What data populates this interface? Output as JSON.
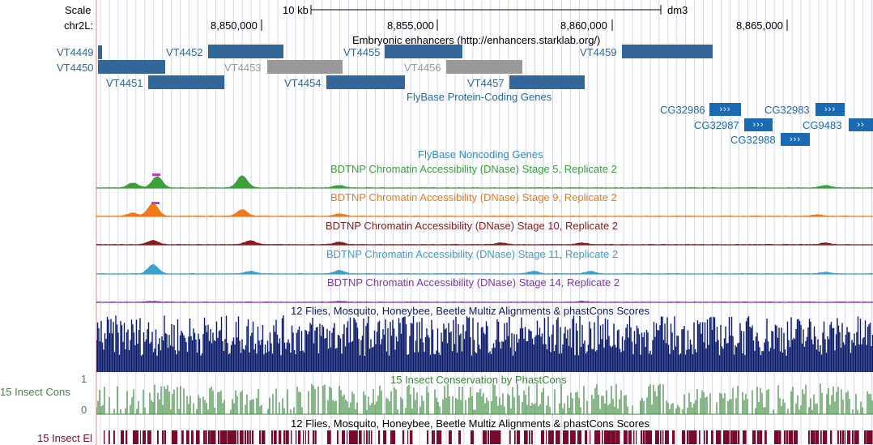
{
  "ruler": {
    "scale_label": "Scale",
    "scale_bar_label": "10 kb",
    "assembly": "dm3",
    "chrom_label": "chr2L:",
    "ticks": [
      "8,850,000",
      "8,855,000",
      "8,860,000",
      "8,865,000"
    ]
  },
  "tracks": {
    "enhancers": {
      "title": "Embryonic enhancers (http://enhancers.starklab.org/)",
      "color": "#336699",
      "gray": "#999999",
      "features": [
        {
          "name": "VT4449",
          "style": "blue"
        },
        {
          "name": "VT4450",
          "style": "blue"
        },
        {
          "name": "VT4451",
          "style": "blue"
        },
        {
          "name": "VT4452",
          "style": "blue"
        },
        {
          "name": "VT4453",
          "style": "gray"
        },
        {
          "name": "VT4454",
          "style": "blue"
        },
        {
          "name": "VT4455",
          "style": "blue"
        },
        {
          "name": "VT4456",
          "style": "gray"
        },
        {
          "name": "VT4457",
          "style": "blue"
        },
        {
          "name": "VT4459",
          "style": "blue"
        }
      ]
    },
    "coding_genes": {
      "title": "FlyBase Protein-Coding Genes",
      "color": "#1a6ab3",
      "genes": [
        {
          "name": "CG32986",
          "arrows": "›››"
        },
        {
          "name": "CG32983",
          "arrows": "›››"
        },
        {
          "name": "CG32987",
          "arrows": "›››"
        },
        {
          "name": "CG9483",
          "arrows": "››"
        },
        {
          "name": "CG32988",
          "arrows": "›››"
        }
      ]
    },
    "noncoding_genes": {
      "title": "FlyBase Noncoding Genes",
      "color": "#2e8bc9"
    },
    "dnase": [
      {
        "title": "BDTNP Chromatin Accessibility (DNase) Stage 5, Replicate 2",
        "color": "#3aa03a"
      },
      {
        "title": "BDTNP Chromatin Accessibility (DNase) Stage 9, Replicate 2",
        "color": "#f07a1a"
      },
      {
        "title": "BDTNP Chromatin Accessibility (DNase) Stage 10, Replicate 2",
        "color": "#8b1a1a"
      },
      {
        "title": "BDTNP Chromatin Accessibility (DNase) Stage 11, Replicate 2",
        "color": "#3aa0cc"
      },
      {
        "title": "BDTNP Chromatin Accessibility (DNase) Stage 14, Replicate 2",
        "color": "#7a3aa0"
      }
    ],
    "multiz": {
      "title": "12 Flies, Mosquito, Honeybee, Beetle Multiz Alignments & phastCons Scores",
      "color": "#0a1a6a"
    },
    "phastcons": {
      "title": "15 Insect Conservation by PhastCons",
      "side_label": "15 Insect Cons",
      "ymax": "1",
      "ymin": "0",
      "color": "#3a8a3a"
    },
    "elements": {
      "title": "12 Flies, Mosquito, Honeybee, Beetle Multiz Alignments & phastCons Scores",
      "side_label": "15 Insect El",
      "color": "#7a0a2a"
    }
  }
}
